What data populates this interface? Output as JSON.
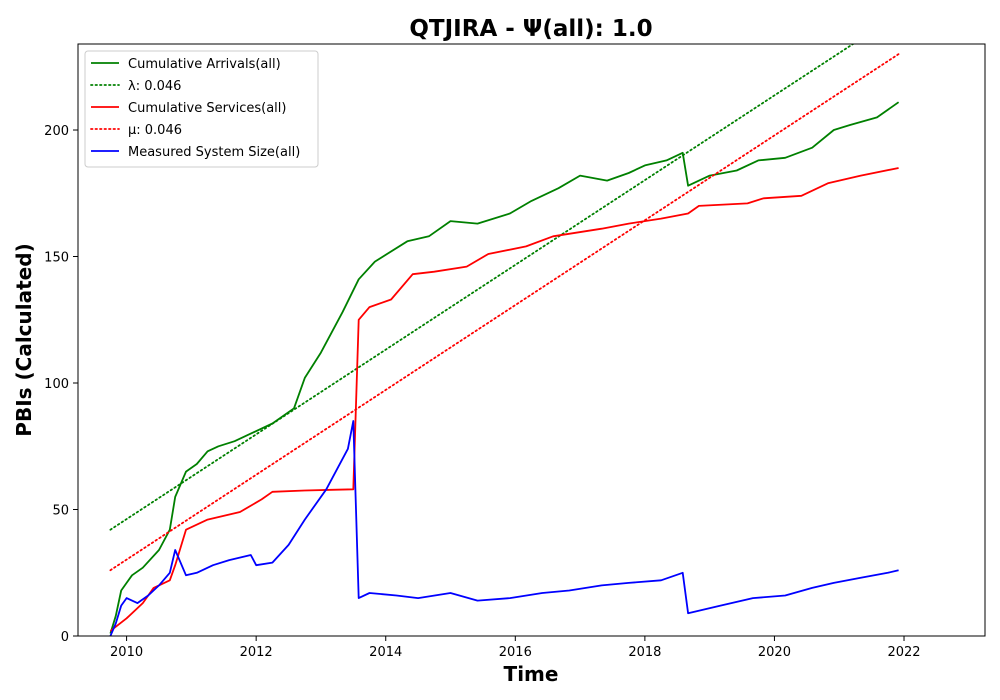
{
  "chart_data": {
    "type": "line",
    "title": "QTJIRA -  Ψ(all): 1.0",
    "xlabel": "Time",
    "ylabel": "PBIs (Calculated)",
    "xlim": [
      "2009-04",
      "2023-04"
    ],
    "ylim": [
      0,
      234
    ],
    "xticks": [
      "2010",
      "2012",
      "2014",
      "2016",
      "2018",
      "2020",
      "2022"
    ],
    "yticks": [
      0,
      50,
      100,
      150,
      200
    ],
    "grid": false,
    "legend_position": "top-left",
    "series": [
      {
        "name": "Cumulative Arrivals(all)",
        "color": "#008000",
        "style": "solid",
        "points": [
          [
            "2009-10",
            1
          ],
          [
            "2009-11",
            8
          ],
          [
            "2009-12",
            18
          ],
          [
            "2010-01",
            21
          ],
          [
            "2010-02",
            24
          ],
          [
            "2010-04",
            27
          ],
          [
            "2010-07",
            34
          ],
          [
            "2010-09",
            42
          ],
          [
            "2010-10",
            55
          ],
          [
            "2010-12",
            65
          ],
          [
            "2011-02",
            68
          ],
          [
            "2011-04",
            73
          ],
          [
            "2011-06",
            75
          ],
          [
            "2011-09",
            77
          ],
          [
            "2011-12",
            80
          ],
          [
            "2012-04",
            84
          ],
          [
            "2012-08",
            90
          ],
          [
            "2012-10",
            102
          ],
          [
            "2013-01",
            112
          ],
          [
            "2013-05",
            128
          ],
          [
            "2013-08",
            141
          ],
          [
            "2013-11",
            148
          ],
          [
            "2014-05",
            156
          ],
          [
            "2014-09",
            158
          ],
          [
            "2015-01",
            164
          ],
          [
            "2015-06",
            163
          ],
          [
            "2015-12",
            167
          ],
          [
            "2016-04",
            172
          ],
          [
            "2016-09",
            177
          ],
          [
            "2017-01",
            182
          ],
          [
            "2017-06",
            180
          ],
          [
            "2017-10",
            183
          ],
          [
            "2018-01",
            186
          ],
          [
            "2018-05",
            188
          ],
          [
            "2018-08",
            191
          ],
          [
            "2018-09",
            178
          ],
          [
            "2019-01",
            182
          ],
          [
            "2019-06",
            184
          ],
          [
            "2019-10",
            188
          ],
          [
            "2020-03",
            189
          ],
          [
            "2020-08",
            193
          ],
          [
            "2020-12",
            200
          ],
          [
            "2021-03",
            202
          ],
          [
            "2021-08",
            205
          ],
          [
            "2021-12",
            211
          ]
        ]
      },
      {
        "name": "λ: 0.046",
        "color": "#008000",
        "style": "dotted",
        "points": [
          [
            "2009-10",
            42
          ],
          [
            "2021-05",
            236
          ]
        ]
      },
      {
        "name": "Cumulative Services(all)",
        "color": "#ff0000",
        "style": "solid",
        "points": [
          [
            "2009-10",
            2
          ],
          [
            "2010-01",
            7
          ],
          [
            "2010-04",
            13
          ],
          [
            "2010-06",
            19
          ],
          [
            "2010-09",
            22
          ],
          [
            "2010-10",
            28
          ],
          [
            "2010-12",
            42
          ],
          [
            "2011-04",
            46
          ],
          [
            "2011-10",
            49
          ],
          [
            "2012-02",
            54
          ],
          [
            "2012-04",
            57
          ],
          [
            "2012-10",
            57.5
          ],
          [
            "2013-03",
            57.8
          ],
          [
            "2013-07",
            58
          ],
          [
            "2013-08",
            125
          ],
          [
            "2013-10",
            130
          ],
          [
            "2014-02",
            133
          ],
          [
            "2014-06",
            143
          ],
          [
            "2014-10",
            144
          ],
          [
            "2015-04",
            146
          ],
          [
            "2015-08",
            151
          ],
          [
            "2016-03",
            154
          ],
          [
            "2016-08",
            158
          ],
          [
            "2017-05",
            161
          ],
          [
            "2017-10",
            163
          ],
          [
            "2018-04",
            165
          ],
          [
            "2018-09",
            167
          ],
          [
            "2018-11",
            170
          ],
          [
            "2019-08",
            171
          ],
          [
            "2019-11",
            173
          ],
          [
            "2020-06",
            174
          ],
          [
            "2020-11",
            179
          ],
          [
            "2021-05",
            182
          ],
          [
            "2021-12",
            185
          ]
        ]
      },
      {
        "name": "μ: 0.046",
        "color": "#ff0000",
        "style": "dotted",
        "points": [
          [
            "2009-10",
            26
          ],
          [
            "2021-12",
            230
          ]
        ]
      },
      {
        "name": "Measured System Size(all)",
        "color": "#0000ff",
        "style": "solid",
        "points": [
          [
            "2009-10",
            0
          ],
          [
            "2009-11",
            5
          ],
          [
            "2009-12",
            12
          ],
          [
            "2010-01",
            15
          ],
          [
            "2010-03",
            13
          ],
          [
            "2010-05",
            16
          ],
          [
            "2010-07",
            20
          ],
          [
            "2010-09",
            25
          ],
          [
            "2010-10",
            34
          ],
          [
            "2010-12",
            24
          ],
          [
            "2011-02",
            25
          ],
          [
            "2011-05",
            28
          ],
          [
            "2011-08",
            30
          ],
          [
            "2011-12",
            32
          ],
          [
            "2012-01",
            28
          ],
          [
            "2012-04",
            29
          ],
          [
            "2012-07",
            36
          ],
          [
            "2012-10",
            46
          ],
          [
            "2013-02",
            58
          ],
          [
            "2013-06",
            74
          ],
          [
            "2013-07",
            85
          ],
          [
            "2013-08",
            15
          ],
          [
            "2013-10",
            17
          ],
          [
            "2014-03",
            16
          ],
          [
            "2014-07",
            15
          ],
          [
            "2015-01",
            17
          ],
          [
            "2015-06",
            14
          ],
          [
            "2015-12",
            15
          ],
          [
            "2016-06",
            17
          ],
          [
            "2016-11",
            18
          ],
          [
            "2017-05",
            20
          ],
          [
            "2017-10",
            21
          ],
          [
            "2018-04",
            22
          ],
          [
            "2018-08",
            25
          ],
          [
            "2018-09",
            9
          ],
          [
            "2019-03",
            12
          ],
          [
            "2019-09",
            15
          ],
          [
            "2020-03",
            16
          ],
          [
            "2020-08",
            19
          ],
          [
            "2020-12",
            21
          ],
          [
            "2021-05",
            23
          ],
          [
            "2021-10",
            25
          ],
          [
            "2021-12",
            26
          ]
        ]
      }
    ]
  }
}
